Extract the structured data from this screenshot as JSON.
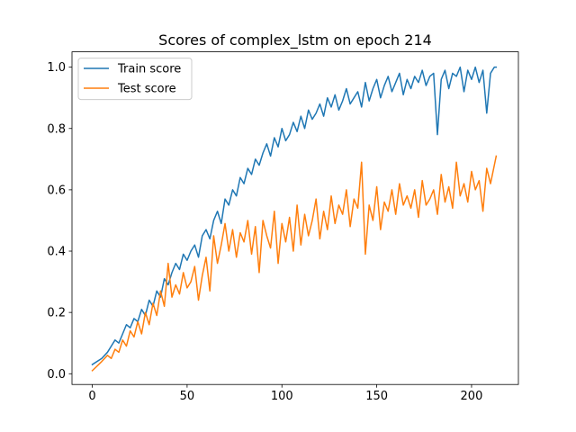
{
  "chart_data": {
    "type": "line",
    "title": "Scores of complex_lstm on epoch 214",
    "xlabel": "",
    "ylabel": "",
    "xlim": [
      -10.7,
      224.7
    ],
    "ylim": [
      -0.035,
      1.05
    ],
    "xticks": [
      0,
      50,
      100,
      150,
      200
    ],
    "xtick_labels": [
      "0",
      "50",
      "100",
      "150",
      "200"
    ],
    "yticks": [
      0.0,
      0.2,
      0.4,
      0.6,
      0.8,
      1.0
    ],
    "ytick_labels": [
      "0.0",
      "0.2",
      "0.4",
      "0.6",
      "0.8",
      "1.0"
    ],
    "grid": false,
    "legend_position": "upper-left",
    "series": [
      {
        "name": "Train score",
        "color": "#1f77b4",
        "x": [
          0,
          5,
          8,
          10,
          12,
          14,
          16,
          18,
          20,
          22,
          24,
          26,
          28,
          30,
          32,
          34,
          36,
          38,
          40,
          42,
          44,
          46,
          48,
          50,
          52,
          54,
          56,
          58,
          60,
          62,
          64,
          66,
          68,
          70,
          72,
          74,
          76,
          78,
          80,
          82,
          84,
          86,
          88,
          90,
          92,
          94,
          96,
          98,
          100,
          102,
          104,
          106,
          108,
          110,
          112,
          114,
          116,
          118,
          120,
          122,
          124,
          126,
          128,
          130,
          132,
          134,
          136,
          138,
          140,
          142,
          144,
          146,
          148,
          150,
          152,
          154,
          156,
          158,
          160,
          162,
          164,
          166,
          168,
          170,
          172,
          174,
          176,
          178,
          180,
          182,
          184,
          186,
          188,
          190,
          192,
          194,
          196,
          198,
          200,
          202,
          204,
          206,
          208,
          210,
          212,
          213
        ],
        "values": [
          0.03,
          0.05,
          0.07,
          0.09,
          0.11,
          0.1,
          0.13,
          0.16,
          0.15,
          0.18,
          0.17,
          0.21,
          0.19,
          0.24,
          0.22,
          0.27,
          0.25,
          0.31,
          0.29,
          0.33,
          0.36,
          0.34,
          0.39,
          0.37,
          0.4,
          0.42,
          0.38,
          0.45,
          0.47,
          0.44,
          0.5,
          0.53,
          0.49,
          0.57,
          0.55,
          0.6,
          0.58,
          0.64,
          0.62,
          0.67,
          0.65,
          0.7,
          0.68,
          0.72,
          0.75,
          0.71,
          0.77,
          0.74,
          0.8,
          0.76,
          0.78,
          0.82,
          0.79,
          0.84,
          0.8,
          0.86,
          0.83,
          0.85,
          0.88,
          0.84,
          0.9,
          0.87,
          0.91,
          0.86,
          0.89,
          0.93,
          0.88,
          0.9,
          0.92,
          0.87,
          0.95,
          0.89,
          0.93,
          0.96,
          0.9,
          0.94,
          0.97,
          0.92,
          0.95,
          0.98,
          0.91,
          0.96,
          0.93,
          0.97,
          0.95,
          0.99,
          0.94,
          0.97,
          0.98,
          0.78,
          0.96,
          0.99,
          0.93,
          0.98,
          0.97,
          1.0,
          0.92,
          0.99,
          0.96,
          1.0,
          0.95,
          0.99,
          0.85,
          0.98,
          1.0,
          1.0
        ]
      },
      {
        "name": "Test score",
        "color": "#ff7f0e",
        "x": [
          0,
          5,
          8,
          10,
          12,
          14,
          16,
          18,
          20,
          22,
          24,
          26,
          28,
          30,
          32,
          34,
          36,
          38,
          40,
          42,
          44,
          46,
          48,
          50,
          52,
          54,
          56,
          58,
          60,
          62,
          64,
          66,
          68,
          70,
          72,
          74,
          76,
          78,
          80,
          82,
          84,
          86,
          88,
          90,
          92,
          94,
          96,
          98,
          100,
          102,
          104,
          106,
          108,
          110,
          112,
          114,
          116,
          118,
          120,
          122,
          124,
          126,
          128,
          130,
          132,
          134,
          136,
          138,
          140,
          142,
          144,
          146,
          148,
          150,
          152,
          154,
          156,
          158,
          160,
          162,
          164,
          166,
          168,
          170,
          172,
          174,
          176,
          178,
          180,
          182,
          184,
          186,
          188,
          190,
          192,
          194,
          196,
          198,
          200,
          202,
          204,
          206,
          208,
          210,
          212,
          213
        ],
        "values": [
          0.01,
          0.04,
          0.06,
          0.05,
          0.08,
          0.07,
          0.11,
          0.09,
          0.14,
          0.12,
          0.17,
          0.13,
          0.2,
          0.16,
          0.23,
          0.19,
          0.27,
          0.22,
          0.36,
          0.25,
          0.29,
          0.26,
          0.33,
          0.28,
          0.3,
          0.35,
          0.24,
          0.32,
          0.38,
          0.27,
          0.45,
          0.36,
          0.42,
          0.49,
          0.4,
          0.47,
          0.38,
          0.46,
          0.43,
          0.5,
          0.39,
          0.48,
          0.33,
          0.5,
          0.45,
          0.41,
          0.53,
          0.36,
          0.49,
          0.43,
          0.51,
          0.4,
          0.55,
          0.42,
          0.52,
          0.45,
          0.5,
          0.57,
          0.44,
          0.53,
          0.47,
          0.58,
          0.49,
          0.55,
          0.52,
          0.6,
          0.48,
          0.57,
          0.54,
          0.69,
          0.39,
          0.55,
          0.5,
          0.61,
          0.47,
          0.56,
          0.53,
          0.6,
          0.52,
          0.62,
          0.55,
          0.58,
          0.54,
          0.6,
          0.51,
          0.63,
          0.55,
          0.57,
          0.6,
          0.52,
          0.65,
          0.56,
          0.61,
          0.54,
          0.69,
          0.58,
          0.62,
          0.56,
          0.66,
          0.6,
          0.63,
          0.53,
          0.67,
          0.62,
          0.68,
          0.71
        ]
      }
    ]
  }
}
